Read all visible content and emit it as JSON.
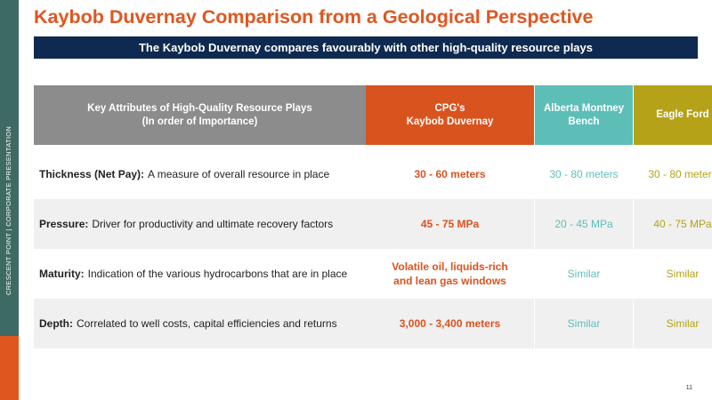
{
  "sidebar": {
    "text": "CRESCENT POINT   |   CORPORATE PRESENTATION"
  },
  "title": "Kaybob Duvernay Comparison from a Geological Perspective",
  "banner": "The Kaybob Duvernay compares favourably with other high-quality resource plays",
  "table": {
    "headers": {
      "attributes_line1": "Key Attributes of High-Quality Resource Plays",
      "attributes_line2": "(In order of Importance)",
      "cpg_line1": "CPG's",
      "cpg_line2": "Kaybob Duvernay",
      "montney_line1": "Alberta Montney",
      "montney_line2": "Bench",
      "eagle": "Eagle Ford"
    },
    "rows": [
      {
        "attr_bold": "Thickness (Net Pay):",
        "attr_desc": "A measure of overall resource in place",
        "cpg_line1": "30 - 60 meters",
        "cpg_line2": "",
        "montney": "30 - 80 meters",
        "eagle": "30 - 80 meters"
      },
      {
        "attr_bold": "Pressure:",
        "attr_desc": "Driver for productivity and ultimate recovery factors",
        "cpg_line1": "45 - 75 MPa",
        "cpg_line2": "",
        "montney": "20 - 45 MPa",
        "eagle": "40 - 75 MPa"
      },
      {
        "attr_bold": "Maturity:",
        "attr_desc": "Indication of the various hydrocarbons that are in place",
        "cpg_line1": "Volatile oil, liquids-rich",
        "cpg_line2": "and lean gas windows",
        "montney": "Similar",
        "eagle": "Similar"
      },
      {
        "attr_bold": "Depth:",
        "attr_desc": "Correlated to well costs, capital efficiencies and returns",
        "cpg_line1": "3,000 - 3,400 meters",
        "cpg_line2": "",
        "montney": "Similar",
        "eagle": "Similar"
      }
    ]
  },
  "page_number": "11",
  "colors": {
    "brand_orange": "#e0561f",
    "navy": "#0f2a50",
    "sidebar_teal": "#3e6a64",
    "montney_teal": "#5dbeb8",
    "eagle_olive": "#b5a218",
    "header_gray": "#8c8c8c"
  }
}
